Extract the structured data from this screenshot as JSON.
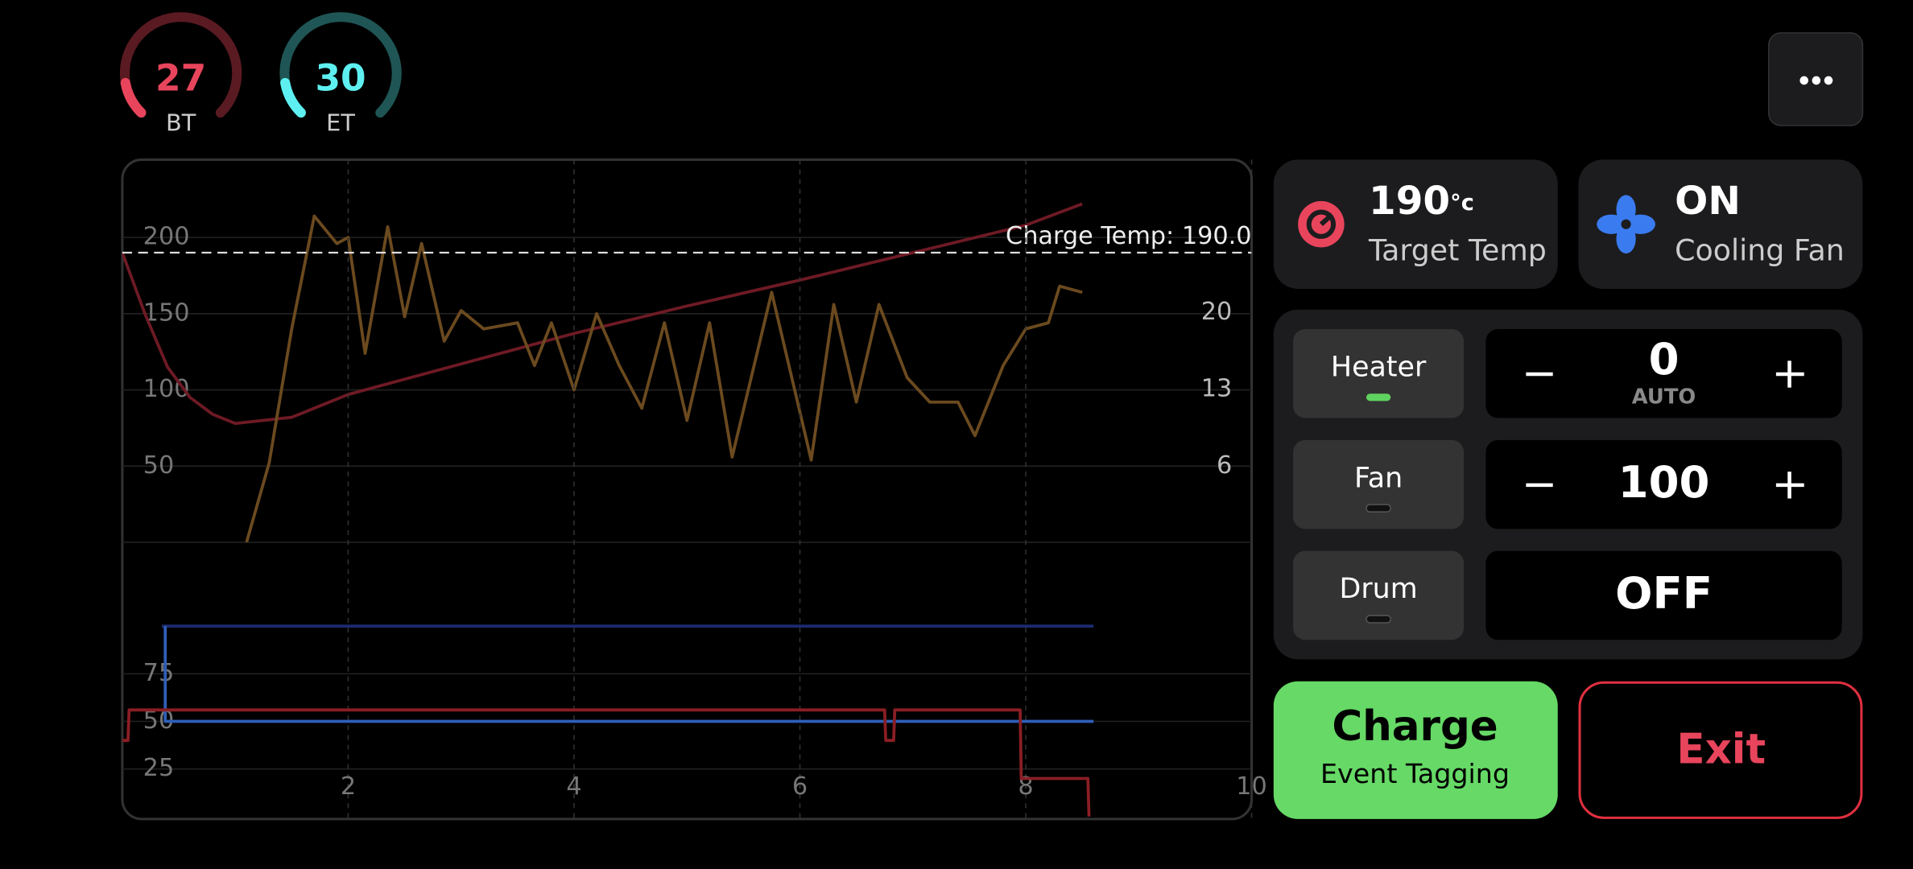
{
  "gauges": [
    {
      "label": "BT",
      "value": 27
    },
    {
      "label": "ET",
      "value": 30
    }
  ],
  "target_temp": {
    "value": 190,
    "unit": "°c",
    "label": "Target Temp"
  },
  "cooling_fan": {
    "state": "ON",
    "label": "Cooling Fan"
  },
  "controls": [
    {
      "label": "Heater",
      "value": 0,
      "mode": "AUTO"
    },
    {
      "label": "Fan",
      "value": 100
    },
    {
      "label": "Drum",
      "value": "OFF"
    }
  ],
  "charge_button": {
    "title": "Charge",
    "subtitle": "Event Tagging"
  },
  "exit_button": "Exit",
  "chart_data": [
    {
      "type": "line",
      "annotation": "Charge Temp: 190.0",
      "reference_line": 190,
      "xlim": [
        0,
        10
      ],
      "ylim": [
        0,
        251
      ],
      "yticks": [
        50,
        100,
        150,
        200
      ],
      "y2lim": [
        -0.9,
        33.9
      ],
      "y2ticks": [
        6,
        13,
        20
      ],
      "grid": true,
      "series": [
        {
          "color": "#6e1a24",
          "x": [
            0,
            0.2,
            0.4,
            0.6,
            0.8,
            1.0,
            1.5,
            2,
            3,
            4,
            5,
            6,
            7,
            8,
            8.5
          ],
          "values": [
            190,
            150,
            115,
            95,
            84,
            78,
            82,
            97,
            117,
            137,
            155,
            172,
            190,
            208,
            222
          ]
        },
        {
          "color": "#6b4a1f",
          "x": [
            1.1,
            1.3,
            1.5,
            1.7,
            1.9,
            2.0,
            2.15,
            2.35,
            2.5,
            2.65,
            2.85,
            3.0,
            3.2,
            3.5,
            3.65,
            3.8,
            4.0,
            4.2,
            4.4,
            4.6,
            4.8,
            5.0,
            5.2,
            5.4,
            5.75,
            6.1,
            6.3,
            6.5,
            6.7,
            6.95,
            7.15,
            7.4,
            7.55,
            7.8,
            8.0,
            8.2,
            8.3,
            8.5
          ],
          "values": [
            0,
            52,
            140,
            214,
            196,
            200,
            124,
            207,
            148,
            196,
            132,
            152,
            140,
            144,
            116,
            144,
            100,
            150,
            116,
            88,
            144,
            80,
            144,
            56,
            164,
            54,
            156,
            92,
            156,
            108,
            92,
            92,
            70,
            116,
            140,
            144,
            168,
            164
          ]
        }
      ]
    },
    {
      "type": "line",
      "xlim": [
        0,
        10
      ],
      "xticks": [
        2,
        4,
        6,
        8,
        10
      ],
      "ylim": [
        0,
        144
      ],
      "yticks": [
        25,
        50,
        75
      ],
      "grid": true,
      "series": [
        {
          "color": "#1c2a6e",
          "x": [
            0.35,
            8.6
          ],
          "values": [
            100,
            100
          ]
        },
        {
          "color": "#2f5fb8",
          "x": [
            0.38,
            0.38,
            8.6
          ],
          "values": [
            100,
            50,
            50
          ]
        },
        {
          "color": "#8a1e24",
          "x": [
            0,
            0.05,
            0.06,
            6.75,
            6.76,
            6.83,
            6.84,
            7.95,
            7.96,
            8.55,
            8.56
          ],
          "values": [
            40,
            40,
            56,
            56,
            40,
            40,
            56,
            56,
            20,
            20,
            0
          ]
        }
      ]
    }
  ]
}
